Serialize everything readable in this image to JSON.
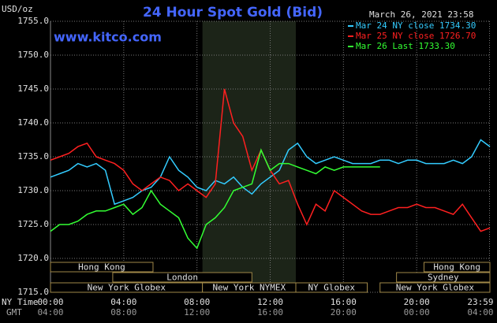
{
  "chart_data": {
    "type": "line",
    "title": "24 Hour Spot Gold (Bid)",
    "website": "www.kitco.com",
    "y_label": "USD/oz",
    "timestamp": "March 26, 2021 23:58",
    "x_label": "NY Time",
    "x2_label": "GMT",
    "x": [
      0,
      0.5,
      1,
      1.5,
      2,
      2.5,
      3,
      3.5,
      4,
      4.5,
      5,
      5.5,
      6,
      6.5,
      7,
      7.5,
      8,
      8.5,
      9,
      9.5,
      10,
      10.5,
      11,
      11.5,
      12,
      12.5,
      13,
      13.5,
      14,
      14.5,
      15,
      15.5,
      16,
      16.5,
      17,
      17.5,
      18,
      18.5,
      19,
      19.5,
      20,
      20.5,
      21,
      21.5,
      22,
      22.5,
      23,
      23.5,
      24
    ],
    "series": [
      {
        "name": "Mar 24 NY close 1734.30",
        "color": "#33ccff",
        "values": [
          1732,
          1732.5,
          1733,
          1734,
          1733.5,
          1734,
          1733,
          1728,
          1728.5,
          1729,
          1730,
          1730.5,
          1732,
          1735,
          1733,
          1732,
          1730.5,
          1730,
          1731.5,
          1731,
          1732,
          1730.5,
          1729.5,
          1731,
          1732,
          1733,
          1736,
          1737,
          1735,
          1734,
          1734.5,
          1735,
          1734.5,
          1734,
          1734,
          1734,
          1734.5,
          1734.5,
          1734,
          1734.5,
          1734.5,
          1734,
          1734,
          1734,
          1734.5,
          1734,
          1735,
          1737.5,
          1736.5
        ]
      },
      {
        "name": "Mar 25 NY close 1726.70",
        "color": "#ff2020",
        "values": [
          1734.5,
          1735,
          1735.5,
          1736.5,
          1737,
          1735,
          1734.5,
          1734,
          1733,
          1731,
          1730,
          1731,
          1732,
          1731.5,
          1730,
          1731,
          1730,
          1729,
          1731,
          1745,
          1740,
          1738,
          1733,
          1736,
          1733,
          1731,
          1731.5,
          1728,
          1725,
          1728,
          1727,
          1730,
          1729,
          1728,
          1727,
          1726.5,
          1726.5,
          1727,
          1727.5,
          1727.5,
          1728,
          1727.5,
          1727.5,
          1727,
          1726.5,
          1728,
          1726,
          1724,
          1724.5
        ]
      },
      {
        "name": "Mar 26 Last 1733.30",
        "color": "#33ff33",
        "values": [
          1724,
          1725,
          1725,
          1725.5,
          1726.5,
          1727,
          1727,
          1727.5,
          1728,
          1726.5,
          1727.5,
          1730,
          1728,
          1727,
          1726,
          1723,
          1721.5,
          1725,
          1726,
          1727.5,
          1730,
          1730.5,
          1731,
          1736,
          1733,
          1734,
          1734,
          1733.5,
          1733,
          1732.5,
          1733.5,
          1733,
          1733.5,
          1733.5,
          1733.5,
          1733.5,
          1733.5,
          null,
          null,
          null,
          null,
          null,
          null,
          null,
          null,
          null,
          null,
          null,
          null
        ]
      }
    ],
    "xlim": [
      0,
      24
    ],
    "xticks": [
      {
        "value": 0,
        "label": "00:00"
      },
      {
        "value": 4,
        "label": "04:00"
      },
      {
        "value": 8,
        "label": "08:00"
      },
      {
        "value": 12,
        "label": "12:00"
      },
      {
        "value": 16,
        "label": "16:00"
      },
      {
        "value": 20,
        "label": "20:00"
      },
      {
        "value": 23.98,
        "label": "23:59"
      }
    ],
    "gmt_ticks": [
      "04:00",
      "08:00",
      "12:00",
      "16:00",
      "20:00",
      "00:00",
      "04:00"
    ],
    "ylim": [
      1715,
      1755
    ],
    "yticks": [
      {
        "value": 1715,
        "label": "1715.0"
      },
      {
        "value": 1720,
        "label": "1720.0"
      },
      {
        "value": 1725,
        "label": "1725.0"
      },
      {
        "value": 1730,
        "label": "1730.0"
      },
      {
        "value": 1735,
        "label": "1735.0"
      },
      {
        "value": 1740,
        "label": "1740.0"
      },
      {
        "value": 1745,
        "label": "1745.0"
      },
      {
        "value": 1750,
        "label": "1750.0"
      },
      {
        "value": 1755,
        "label": "1755.0"
      }
    ],
    "grid": true,
    "shaded_hours": [
      8.3,
      13.4
    ],
    "sessions": [
      {
        "label": "Hong Kong",
        "start": 0,
        "end": 5.6,
        "row": 0
      },
      {
        "label": "Hong Kong",
        "start": 20.4,
        "end": 24,
        "row": 0
      },
      {
        "label": "London",
        "start": 3.4,
        "end": 11,
        "row": 1
      },
      {
        "label": "Sydney",
        "start": 18.9,
        "end": 24,
        "row": 1
      },
      {
        "label": "New York Globex",
        "start": 0,
        "end": 8.3,
        "row": 2
      },
      {
        "label": "New York NYMEX",
        "start": 8.3,
        "end": 13.4,
        "row": 2
      },
      {
        "label": "NY Globex",
        "start": 13.4,
        "end": 17.3,
        "row": 2
      },
      {
        "label": "New York Globex",
        "start": 18,
        "end": 24,
        "row": 2
      }
    ]
  }
}
